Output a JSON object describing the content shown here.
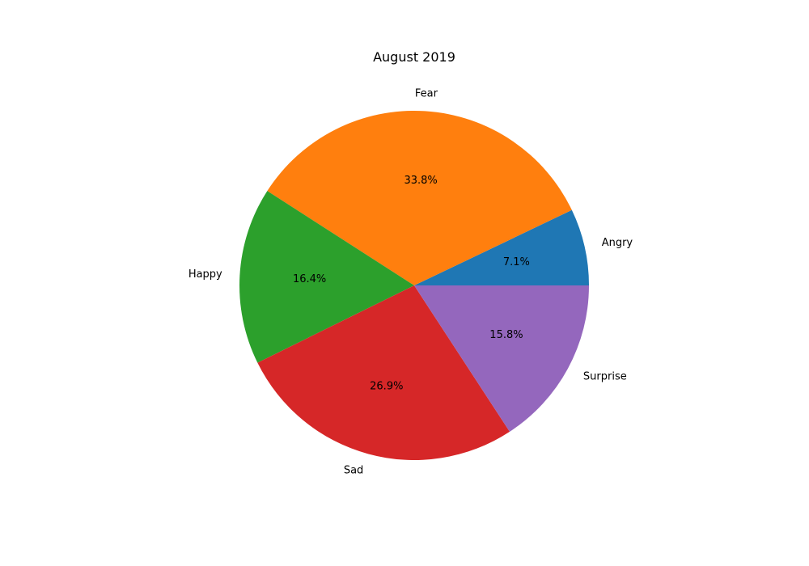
{
  "chart_data": {
    "type": "pie",
    "title": "August 2019",
    "categories": [
      "Angry",
      "Fear",
      "Happy",
      "Sad",
      "Surprise"
    ],
    "values": [
      7.1,
      33.8,
      16.4,
      26.9,
      15.8
    ],
    "value_labels": [
      "7.1%",
      "33.8%",
      "16.4%",
      "26.9%",
      "15.8%"
    ],
    "colors": [
      "#1f77b4",
      "#ff7f0e",
      "#2ca02c",
      "#d62728",
      "#9467bd"
    ],
    "start_angle_deg": 0,
    "direction": "counterclockwise",
    "legend": "none"
  }
}
